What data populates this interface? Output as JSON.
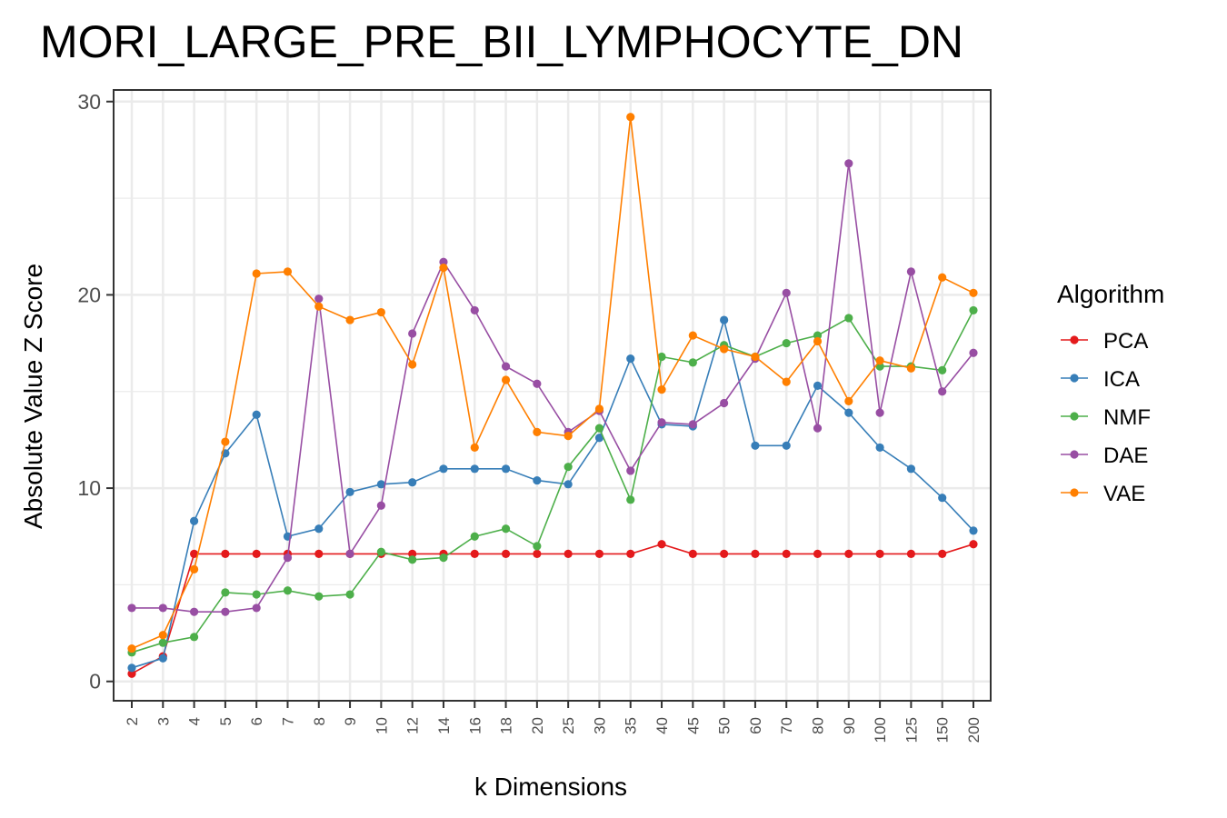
{
  "chart_data": {
    "type": "line",
    "title": "MORI_LARGE_PRE_BII_LYMPHOCYTE_DN",
    "xlabel": "k Dimensions",
    "ylabel": "Absolute Value Z Score",
    "ylim": [
      -1,
      30.6
    ],
    "yticks": [
      0,
      10,
      20,
      30
    ],
    "grid": true,
    "legend_title": "Algorithm",
    "legend_position": "right",
    "categories": [
      "2",
      "3",
      "4",
      "5",
      "6",
      "7",
      "8",
      "9",
      "10",
      "12",
      "14",
      "16",
      "18",
      "20",
      "25",
      "30",
      "35",
      "40",
      "45",
      "50",
      "60",
      "70",
      "80",
      "90",
      "100",
      "125",
      "150",
      "200"
    ],
    "series": [
      {
        "name": "PCA",
        "color": "#e41a1c",
        "values": [
          0.4,
          1.3,
          6.6,
          6.6,
          6.6,
          6.6,
          6.6,
          6.6,
          6.6,
          6.6,
          6.6,
          6.6,
          6.6,
          6.6,
          6.6,
          6.6,
          6.6,
          7.1,
          6.6,
          6.6,
          6.6,
          6.6,
          6.6,
          6.6,
          6.6,
          6.6,
          6.6,
          7.1
        ]
      },
      {
        "name": "ICA",
        "color": "#377eb8",
        "values": [
          0.7,
          1.2,
          8.3,
          11.8,
          13.8,
          7.5,
          7.9,
          9.8,
          10.2,
          10.3,
          11.0,
          11.0,
          11.0,
          10.4,
          10.2,
          12.6,
          16.7,
          13.3,
          13.2,
          18.7,
          12.2,
          12.2,
          15.3,
          13.9,
          12.1,
          11.0,
          9.5,
          7.8
        ]
      },
      {
        "name": "NMF",
        "color": "#4daf4a",
        "values": [
          1.5,
          2.0,
          2.3,
          4.6,
          4.5,
          4.7,
          4.4,
          4.5,
          6.7,
          6.3,
          6.4,
          7.5,
          7.9,
          7.0,
          11.1,
          13.1,
          9.4,
          16.8,
          16.5,
          17.4,
          16.8,
          17.5,
          17.9,
          18.8,
          16.3,
          16.3,
          16.1,
          19.2
        ]
      },
      {
        "name": "DAE",
        "color": "#984ea3",
        "values": [
          3.8,
          3.8,
          3.6,
          3.6,
          3.8,
          6.4,
          19.8,
          6.6,
          9.1,
          18.0,
          21.7,
          19.2,
          16.3,
          15.4,
          12.9,
          14.0,
          10.9,
          13.4,
          13.3,
          14.4,
          16.7,
          20.1,
          13.1,
          26.8,
          13.9,
          21.2,
          15.0,
          17.0
        ]
      },
      {
        "name": "VAE",
        "color": "#ff7f00",
        "values": [
          1.7,
          2.4,
          5.8,
          12.4,
          21.1,
          21.2,
          19.4,
          18.7,
          19.1,
          16.4,
          21.4,
          12.1,
          15.6,
          12.9,
          12.7,
          14.1,
          29.2,
          15.1,
          17.9,
          17.2,
          16.8,
          15.5,
          17.6,
          14.5,
          16.6,
          16.2,
          20.9,
          20.1
        ]
      }
    ]
  }
}
